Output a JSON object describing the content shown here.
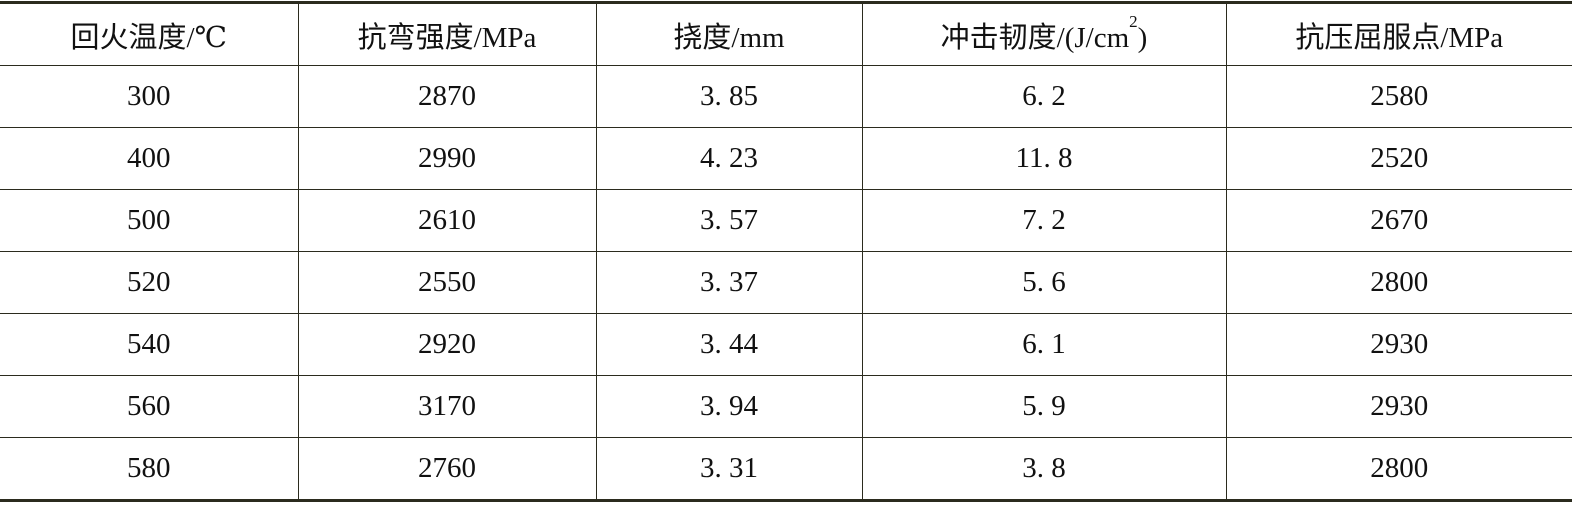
{
  "table": {
    "headers": [
      "回火温度/℃",
      "抗弯强度/MPa",
      "挠度/mm",
      "冲击韧度/(J/cm",
      "抗压屈服点/MPa"
    ],
    "header_superscript": "2",
    "header_suffix": ")",
    "rows": [
      [
        "300",
        "2870",
        "3. 85",
        "6. 2",
        "2580"
      ],
      [
        "400",
        "2990",
        "4. 23",
        "11. 8",
        "2520"
      ],
      [
        "500",
        "2610",
        "3. 57",
        "7. 2",
        "2670"
      ],
      [
        "520",
        "2550",
        "3. 37",
        "5. 6",
        "2800"
      ],
      [
        "540",
        "2920",
        "3. 44",
        "6. 1",
        "2930"
      ],
      [
        "560",
        "3170",
        "3. 94",
        "5. 9",
        "2930"
      ],
      [
        "580",
        "2760",
        "3. 31",
        "3. 8",
        "2800"
      ]
    ]
  }
}
